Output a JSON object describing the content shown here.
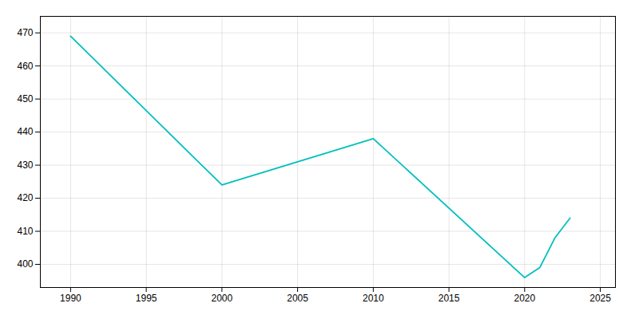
{
  "chart_data": {
    "type": "line",
    "x": [
      1990,
      2000,
      2010,
      2020,
      2021,
      2022,
      2023
    ],
    "values": [
      469,
      424,
      438,
      396,
      399,
      408,
      414
    ],
    "color": "#00BFBF",
    "xlim": [
      1988,
      2026
    ],
    "ylim": [
      393,
      475
    ],
    "xticks": [
      1990,
      1995,
      2000,
      2005,
      2010,
      2015,
      2020,
      2025
    ],
    "yticks": [
      400,
      410,
      420,
      430,
      440,
      450,
      460,
      470
    ],
    "grid": true
  }
}
